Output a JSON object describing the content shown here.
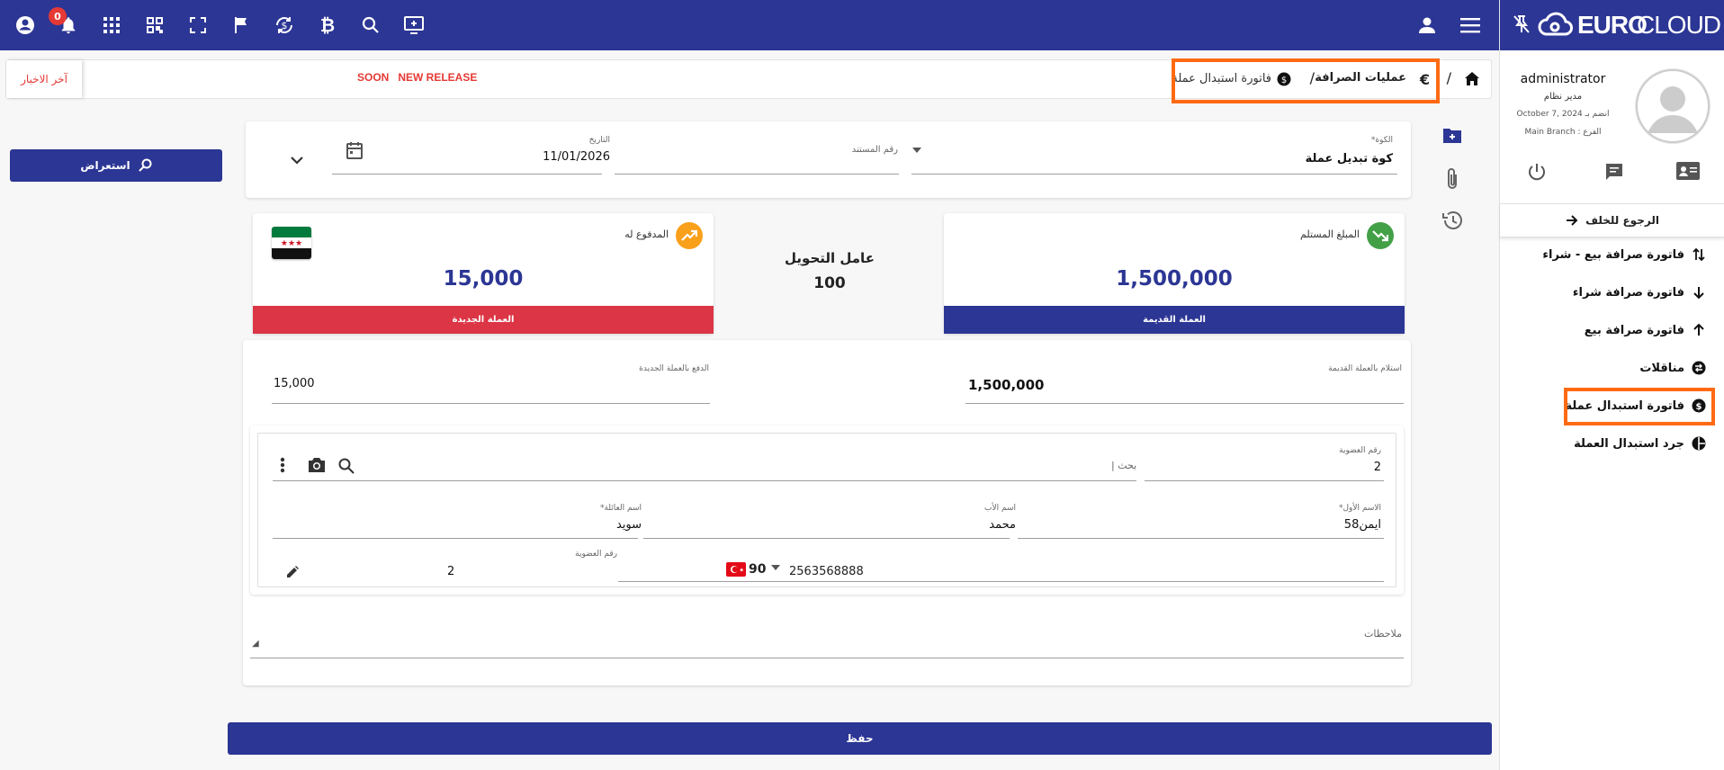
{
  "topbar": {
    "notification_count": "0",
    "icons": [
      "account-circle-icon",
      "bell-icon",
      "apps-grid-icon",
      "qr-code-icon",
      "fullscreen-icon",
      "flag-icon",
      "currency-exchange-icon",
      "bitcoin-icon",
      "search-icon",
      "add-screen-icon",
      "user-icon",
      "menu-icon"
    ]
  },
  "brand": {
    "logo_euro": "EURO",
    "logo_cloud": "CLOUD"
  },
  "user": {
    "name": "administrator",
    "role": "مدير نظام",
    "joined": "October 7, 2024 انضم بـ",
    "branch": "Main Branch : الفرع"
  },
  "sidebar": {
    "back_label": "الرجوع للخلف",
    "items": [
      {
        "label": "فاتورة صرافة بيع - شراء",
        "icon": "swap-vert-icon"
      },
      {
        "label": "فاتورة صرافة شراء",
        "icon": "arrow-down-icon"
      },
      {
        "label": "فاتورة صرافة بيع",
        "icon": "arrow-up-icon"
      },
      {
        "label": "مناقلات",
        "icon": "transfer-icon"
      },
      {
        "label": "فاتورة استبدال عملة",
        "icon": "currency-swap-icon"
      },
      {
        "label": "جرد استبدال العملة",
        "icon": "pie-chart-icon"
      }
    ]
  },
  "news": {
    "label": "آخر الاخبار",
    "ticker": "SOON   NEW RELEASE"
  },
  "breadcrumb": {
    "section": "عمليات الصرافة",
    "page": "فاتورة استبدال عملة",
    "sep": "/"
  },
  "form": {
    "box_label": "الكوة*",
    "box_value": "كوة تبديل عملة",
    "doc_label": "رقم المستند",
    "doc_value": "",
    "date_label": "التاريخ",
    "date_value": "11/01/2026",
    "review_button": "استعراض"
  },
  "exchange": {
    "received_label": "المبلغ المستلم",
    "received_amount": "1,500,000",
    "old_currency": "العملة القديمة",
    "rate_label": "عامل التحويل",
    "rate_value": "100",
    "paid_label": "المدفوع له",
    "paid_amount": "15,000",
    "new_currency": "العملة الجديدة"
  },
  "amounts": {
    "receive_old_label": "استلام بالعملة القديمة",
    "receive_old_value": "1,500,000",
    "pay_new_label": "الدفع بالعملة الجديدة",
    "pay_new_value": "15,000"
  },
  "customer": {
    "member_label": "رقم العضوية",
    "member_value": "2",
    "search_placeholder": "بحث |",
    "first_name_label": "الاسم الأول*",
    "first_name_value": "ايمن58",
    "father_label": "اسم الأب",
    "father_value": "محمد",
    "family_label": "اسم العائلة*",
    "family_value": "سويد",
    "phone_code": "90",
    "phone_value": "2563568888",
    "member2_label": "رقم العضوية",
    "member2_value": "2"
  },
  "notes": {
    "label": "ملاحظات",
    "value": ""
  },
  "save_button": "حفظ",
  "colors": {
    "primary": "#2c3694",
    "red": "#dc3545",
    "highlight": "#ff6a13",
    "green": "#43a047",
    "orange": "#f9a01b"
  }
}
